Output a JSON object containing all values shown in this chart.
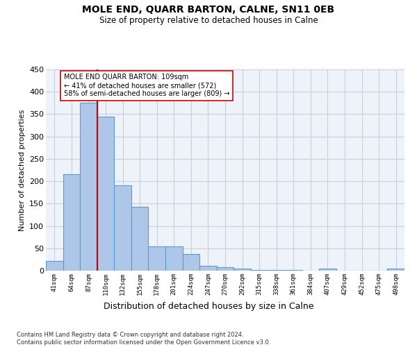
{
  "title": "MOLE END, QUARR BARTON, CALNE, SN11 0EB",
  "subtitle": "Size of property relative to detached houses in Calne",
  "xlabel": "Distribution of detached houses by size in Calne",
  "ylabel": "Number of detached properties",
  "categories": [
    "41sqm",
    "64sqm",
    "87sqm",
    "110sqm",
    "132sqm",
    "155sqm",
    "178sqm",
    "201sqm",
    "224sqm",
    "247sqm",
    "270sqm",
    "292sqm",
    "315sqm",
    "338sqm",
    "361sqm",
    "384sqm",
    "407sqm",
    "429sqm",
    "452sqm",
    "475sqm",
    "498sqm"
  ],
  "values": [
    22,
    216,
    375,
    344,
    191,
    142,
    55,
    55,
    38,
    11,
    7,
    5,
    2,
    1,
    1,
    0,
    4,
    0,
    0,
    0,
    4
  ],
  "bar_color": "#aec6e8",
  "bar_edge_color": "#5b9bd5",
  "vline_color": "#cc0000",
  "annotation_text": "MOLE END QUARR BARTON: 109sqm\n← 41% of detached houses are smaller (572)\n58% of semi-detached houses are larger (809) →",
  "annotation_box_color": "#ffffff",
  "annotation_box_edge": "#cc0000",
  "ylim": [
    0,
    450
  ],
  "yticks": [
    0,
    50,
    100,
    150,
    200,
    250,
    300,
    350,
    400,
    450
  ],
  "background_color": "#eef2f9",
  "grid_color": "#c8d0e0",
  "footer": "Contains HM Land Registry data © Crown copyright and database right 2024.\nContains public sector information licensed under the Open Government Licence v3.0."
}
